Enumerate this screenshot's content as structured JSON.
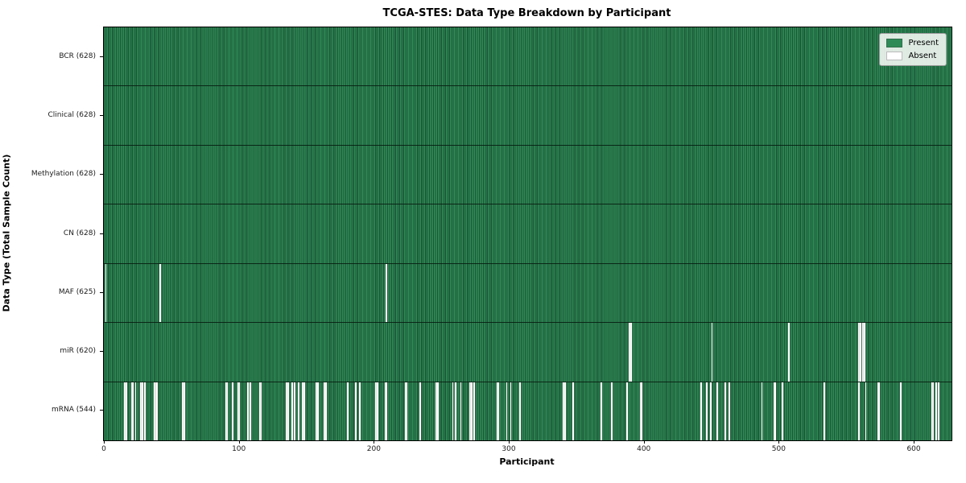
{
  "chart_data": {
    "type": "heatmap",
    "title": "TCGA-STES: Data Type Breakdown by Participant",
    "xlabel": "Participant",
    "ylabel": "Data Type (Total Sample Count)",
    "n_participants": 628,
    "x_range": [
      0,
      628
    ],
    "xticks": [
      0,
      100,
      200,
      300,
      400,
      500,
      600
    ],
    "grid": false,
    "legend_position": "upper right",
    "legend": [
      {
        "label": "Present",
        "color": "#2e8b57"
      },
      {
        "label": "Absent",
        "color": "#ffffff"
      }
    ],
    "colors": {
      "present_face": "#2e8b57",
      "present_edge": "#1c5434",
      "absent": "#fcfcfc",
      "row_separator": "#0a1f12",
      "spine": "#000000"
    },
    "rows": [
      {
        "data_type": "BCR",
        "label": "BCR (628)",
        "present_count": 628,
        "absent_participants": []
      },
      {
        "data_type": "Clinical",
        "label": "Clinical (628)",
        "present_count": 628,
        "absent_participants": []
      },
      {
        "data_type": "Methylation",
        "label": "Methylation (628)",
        "present_count": 628,
        "absent_participants": []
      },
      {
        "data_type": "CN",
        "label": "CN (628)",
        "present_count": 628,
        "absent_participants": []
      },
      {
        "data_type": "MAF",
        "label": "MAF (625)",
        "present_count": 625,
        "absent_participants": [
          1,
          41,
          209
        ]
      },
      {
        "data_type": "miR",
        "label": "miR (620)",
        "present_count": 620,
        "absent_participants": [
          389,
          390,
          450,
          507,
          559,
          560,
          562,
          563
        ]
      },
      {
        "data_type": "mRNA",
        "label": "mRNA (544)",
        "present_count": 544,
        "absent_participants": [
          15,
          16,
          20,
          21,
          23,
          27,
          28,
          30,
          37,
          38,
          39,
          58,
          59,
          90,
          91,
          95,
          99,
          100,
          106,
          108,
          115,
          116,
          135,
          136,
          139,
          141,
          144,
          147,
          148,
          157,
          158,
          163,
          164,
          180,
          186,
          189,
          201,
          202,
          208,
          209,
          223,
          224,
          234,
          246,
          247,
          258,
          260,
          264,
          271,
          272,
          274,
          291,
          292,
          298,
          301,
          308,
          340,
          341,
          347,
          368,
          376,
          387,
          397,
          398,
          442,
          446,
          449,
          454,
          460,
          463,
          487,
          496,
          497,
          502,
          533,
          559,
          564,
          573,
          574,
          590,
          613,
          614,
          616,
          618
        ]
      }
    ]
  }
}
